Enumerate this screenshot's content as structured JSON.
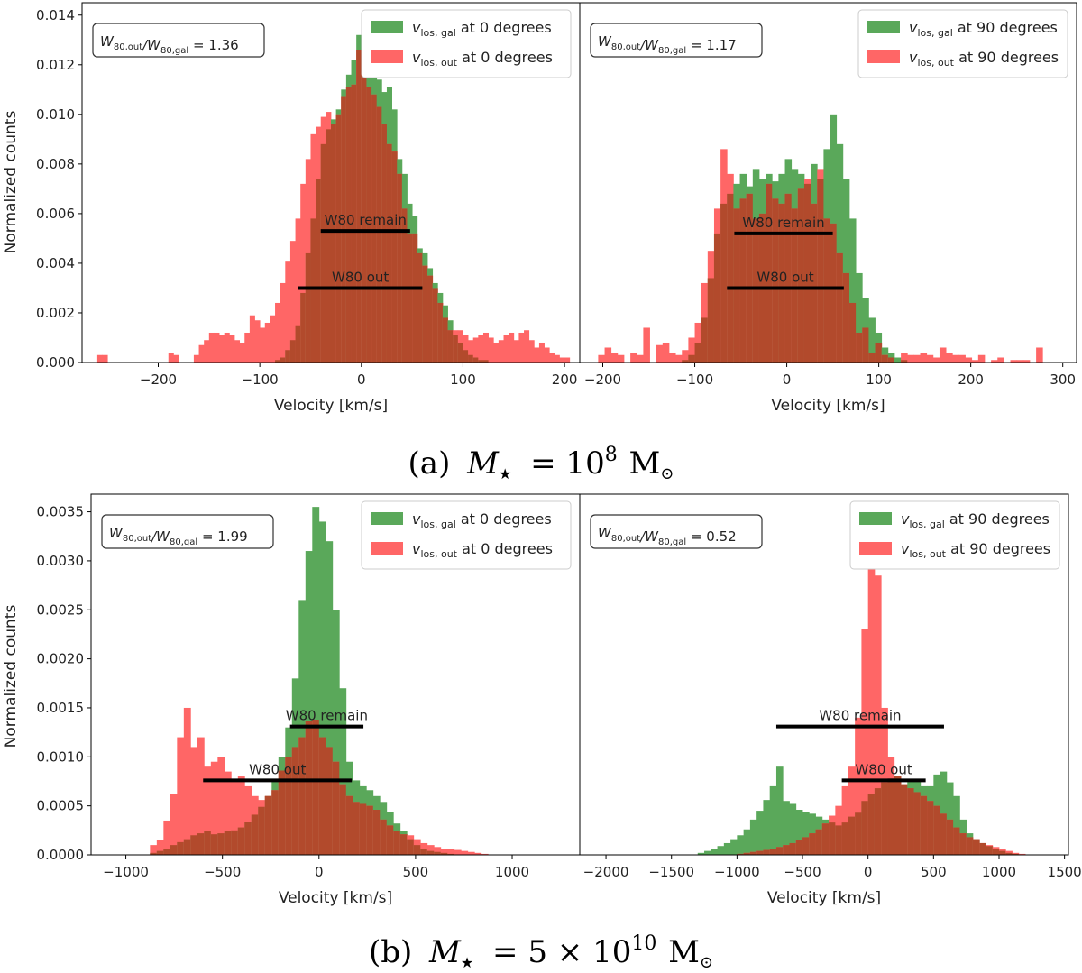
{
  "y_axis_label": "Normalized counts",
  "x_axis_label": "Velocity [km/s]",
  "captions": [
    {
      "prefix": "(a)",
      "expr": "M",
      "sub": "★",
      "eq": "= 10",
      "sup": "8",
      "unit": "M",
      "unit_sub": "⊙"
    },
    {
      "prefix": "(b)",
      "expr": "M",
      "sub": "★",
      "eq": "= 5 × 10",
      "sup": "10",
      "unit": "M",
      "unit_sub": "⊙"
    }
  ],
  "colors": {
    "gal": "#5aa85a",
    "out": "#ff6666",
    "overlap": "#b24a2c",
    "bar": "#000000"
  },
  "chart_data": [
    {
      "type": "histogram",
      "panel": "(a) left",
      "xlabel": "Velocity [km/s]",
      "ylabel": "Normalized counts",
      "xlim": [
        -275,
        215
      ],
      "ylim": [
        0,
        0.0145
      ],
      "xticks": [
        -200,
        -100,
        0,
        100,
        200
      ],
      "yticks": [
        0.0,
        0.002,
        0.004,
        0.006,
        0.008,
        0.01,
        0.012,
        0.014
      ],
      "ytick_labels": [
        "0.000",
        "0.002",
        "0.004",
        "0.006",
        "0.008",
        "0.010",
        "0.012",
        "0.014"
      ],
      "ratio_label": "W₈₀,out/W₈₀,gal = 1.36",
      "legend": [
        "v_los,gal at 0 degrees",
        "v_los,out at 0 degrees"
      ],
      "legend_position": "top-right",
      "bins": {
        "start": -260,
        "width": 5
      },
      "series": [
        {
          "name": "v_los,gal at 0 degrees",
          "values": [
            0,
            0,
            0,
            0,
            0,
            0,
            0,
            0,
            0,
            0,
            0,
            0,
            0,
            0,
            0,
            0,
            0,
            0,
            0,
            0,
            0,
            0,
            0,
            0,
            0,
            0,
            0,
            0,
            0,
            0,
            0,
            0,
            0,
            0,
            0,
            0.0001,
            0.0002,
            0.0005,
            0.0009,
            0.0015,
            0.0028,
            0.0044,
            0.0058,
            0.0074,
            0.0088,
            0.0094,
            0.0098,
            0.0102,
            0.011,
            0.0116,
            0.0122,
            0.0132,
            0.0139,
            0.0128,
            0.0122,
            0.0114,
            0.0109,
            0.0111,
            0.0102,
            0.0082,
            0.0076,
            0.0064,
            0.0059,
            0.0046,
            0.0044,
            0.0038,
            0.0032,
            0.0028,
            0.0023,
            0.0017,
            0.0011,
            0.0008,
            0.0005,
            0.0003,
            0.0002,
            0.0001,
            0.0001,
            0,
            0,
            0,
            0,
            0,
            0,
            0,
            0,
            0,
            0,
            0,
            0,
            0,
            0,
            0,
            0,
            0
          ]
        },
        {
          "name": "v_los,out at 0 degrees",
          "values": [
            0.0003,
            0.0003,
            0,
            0,
            0,
            0,
            0,
            0,
            0,
            0,
            0,
            0,
            0,
            0,
            0.0004,
            0.0003,
            0,
            0,
            0,
            0.0003,
            0.0007,
            0.0009,
            0.0012,
            0.0012,
            0.0011,
            0.0012,
            0.0011,
            0.0009,
            0.0008,
            0.0012,
            0.0019,
            0.0017,
            0.0014,
            0.0016,
            0.0019,
            0.0024,
            0.0032,
            0.0041,
            0.0049,
            0.0058,
            0.0072,
            0.0082,
            0.0092,
            0.0095,
            0.0099,
            0.0101,
            0.0096,
            0.01,
            0.0107,
            0.0111,
            0.0112,
            0.0126,
            0.0119,
            0.0111,
            0.0108,
            0.0103,
            0.0096,
            0.0088,
            0.0085,
            0.0076,
            0.0062,
            0.0052,
            0.0052,
            0.0044,
            0.0039,
            0.0035,
            0.003,
            0.0024,
            0.0018,
            0.0013,
            0.0013,
            0.0013,
            0.0011,
            0.0009,
            0.001,
            0.0011,
            0.0012,
            0.001,
            0.0008,
            0.0009,
            0.0011,
            0.0012,
            0.0009,
            0.0012,
            0.0013,
            0.0009,
            0.0006,
            0.0008,
            0.0006,
            0.0004,
            0.0003,
            0.0002,
            0.0002
          ]
        }
      ],
      "w80_bars": [
        {
          "label": "W80 remain",
          "x": [
            -40,
            48
          ],
          "y": 0.0053
        },
        {
          "label": "W80 out",
          "x": [
            -62,
            60
          ],
          "y": 0.003
        }
      ]
    },
    {
      "type": "histogram",
      "panel": "(a) right",
      "xlabel": "Velocity [km/s]",
      "ylabel": "",
      "xlim": [
        -225,
        315
      ],
      "ylim": [
        0,
        0.0145
      ],
      "xticks": [
        -200,
        -100,
        0,
        100,
        200,
        300
      ],
      "ratio_label": "W₈₀,out/W₈₀,gal = 1.17",
      "legend": [
        "v_los,gal at 90 degrees",
        "v_los,out at 90 degrees"
      ],
      "legend_position": "top-right",
      "bins": {
        "start": -205,
        "width": 7
      },
      "series": [
        {
          "name": "v_los,gal at 90 degrees",
          "values": [
            0,
            0,
            0,
            0,
            0,
            0,
            0,
            0,
            0,
            0,
            0,
            0,
            0,
            0.0001,
            0.0003,
            0.0008,
            0.0018,
            0.0034,
            0.0052,
            0.0064,
            0.0068,
            0.0072,
            0.0076,
            0.0071,
            0.0078,
            0.0074,
            0.0076,
            0.0073,
            0.0076,
            0.0082,
            0.0078,
            0.0076,
            0.0072,
            0.008,
            0.0074,
            0.0086,
            0.01,
            0.0088,
            0.0074,
            0.0058,
            0.0036,
            0.0026,
            0.0018,
            0.0012,
            0.0006,
            0.0004,
            0.0002,
            0.0001,
            0,
            0,
            0,
            0,
            0,
            0,
            0,
            0,
            0,
            0,
            0,
            0,
            0,
            0,
            0,
            0,
            0,
            0,
            0,
            0,
            0,
            0
          ]
        },
        {
          "name": "v_los,out at 90 degrees",
          "values": [
            0.0003,
            0.0006,
            0.0004,
            0.0003,
            0,
            0.0004,
            0.0003,
            0.0014,
            0,
            0.0007,
            0.0008,
            0.0004,
            0.0003,
            0.0005,
            0.001,
            0.0016,
            0.0032,
            0.0045,
            0.0062,
            0.0086,
            0.0076,
            0.0062,
            0.0066,
            0.0068,
            0.0058,
            0.006,
            0.0072,
            0.0066,
            0.0064,
            0.0068,
            0.0062,
            0.007,
            0.0074,
            0.0064,
            0.0078,
            0.0058,
            0.0056,
            0.0044,
            0.0036,
            0.0024,
            0.0012,
            0.0014,
            0.0004,
            0.0008,
            0.0003,
            0.0002,
            0,
            0.0004,
            0.0003,
            0.0003,
            0.0004,
            0.0003,
            0.0002,
            0.0006,
            0.0004,
            0.0003,
            0.0003,
            0.0002,
            0.0001,
            0.0003,
            0,
            0.0001,
            0.0002,
            0,
            0.0001,
            0.0001,
            0.0001,
            0,
            0.0006,
            0
          ]
        }
      ],
      "w80_bars": [
        {
          "label": "W80 remain",
          "x": [
            -57,
            50
          ],
          "y": 0.0052
        },
        {
          "label": "W80 out",
          "x": [
            -65,
            62
          ],
          "y": 0.003
        }
      ]
    },
    {
      "type": "histogram",
      "panel": "(b) left",
      "xlabel": "Velocity [km/s]",
      "ylabel": "Normalized counts",
      "xlim": [
        -1180,
        1350
      ],
      "ylim": [
        0,
        0.00368
      ],
      "xticks": [
        -1000,
        -500,
        0,
        500,
        1000
      ],
      "yticks": [
        0.0,
        0.0005,
        0.001,
        0.0015,
        0.002,
        0.0025,
        0.003,
        0.0035
      ],
      "ytick_labels": [
        "0.0000",
        "0.0005",
        "0.0010",
        "0.0015",
        "0.0020",
        "0.0025",
        "0.0030",
        "0.0035"
      ],
      "ratio_label": "W₈₀,out/W₈₀,gal = 1.99",
      "legend": [
        "v_los,gal at 0 degrees",
        "v_los,out at 0 degrees"
      ],
      "legend_position": "top-right",
      "bins": {
        "start": -875,
        "width": 35
      },
      "series": [
        {
          "name": "v_los,gal at 0 degrees",
          "values": [
            2e-05,
            4e-05,
            6e-05,
            0.0001,
            0.00013,
            0.00016,
            0.0002,
            0.00022,
            0.00024,
            0.00021,
            0.00022,
            0.00024,
            0.00025,
            0.00028,
            0.00034,
            0.00041,
            0.00049,
            0.0006,
            0.00077,
            0.001,
            0.0013,
            0.0018,
            0.0026,
            0.0031,
            0.00355,
            0.0034,
            0.0032,
            0.0025,
            0.0017,
            0.00095,
            0.00076,
            0.0007,
            0.00066,
            0.0006,
            0.00054,
            0.00044,
            0.00032,
            0.00024,
            0.00016,
            0.0001,
            6e-05,
            4e-05,
            3e-05,
            2e-05,
            1e-05,
            0,
            0,
            0,
            0,
            0
          ]
        },
        {
          "name": "v_los,out at 0 degrees",
          "values": [
            0.0001,
            0.00015,
            0.00035,
            0.00062,
            0.0012,
            0.0015,
            0.0011,
            0.0012,
            0.0009,
            0.00095,
            0.001,
            0.00085,
            0.00075,
            0.0008,
            0.0007,
            0.0006,
            0.00056,
            0.0006,
            0.00066,
            0.00086,
            0.001,
            0.0011,
            0.0012,
            0.00137,
            0.00138,
            0.0012,
            0.0011,
            0.00095,
            0.00072,
            0.0006,
            0.00054,
            0.00052,
            0.0005,
            0.00046,
            0.00036,
            0.0003,
            0.00024,
            0.00021,
            0.0002,
            0.00016,
            0.00012,
            0.0001,
            8e-05,
            6e-05,
            6e-05,
            5e-05,
            4e-05,
            3e-05,
            2e-05,
            1e-05
          ]
        }
      ],
      "w80_bars": [
        {
          "label": "W80 remain",
          "x": [
            -150,
            230
          ],
          "y": 0.00131
        },
        {
          "label": "W80 out",
          "x": [
            -600,
            170
          ],
          "y": 0.00076
        }
      ]
    },
    {
      "type": "histogram",
      "panel": "(b) right",
      "xlabel": "Velocity [km/s]",
      "ylabel": "",
      "xlim": [
        -2200,
        1530
      ],
      "ylim": [
        0,
        0.00368
      ],
      "xticks": [
        -2000,
        -1500,
        -1000,
        -500,
        0,
        500,
        1000,
        1500
      ],
      "ratio_label": "W₈₀,out/W₈₀,gal = 0.52",
      "legend": [
        "v_los,gal at 90 degrees",
        "v_los,out at 90 degrees"
      ],
      "legend_position": "top-right",
      "bins": {
        "start": -1300,
        "width": 50
      },
      "series": [
        {
          "name": "v_los,gal at 90 degrees",
          "values": [
            2e-05,
            4e-05,
            6e-05,
            9e-05,
            0.00012,
            0.00016,
            0.0002,
            0.00026,
            0.00036,
            0.00045,
            0.00056,
            0.0007,
            0.0009,
            0.00055,
            0.00052,
            0.00046,
            0.00044,
            0.00042,
            0.00039,
            0.00036,
            0.00033,
            0.0003,
            0.00033,
            0.00039,
            0.00043,
            0.00055,
            0.00062,
            0.00068,
            0.00074,
            0.00078,
            0.0008,
            0.00072,
            0.00075,
            0.00077,
            0.0007,
            0.0007,
            0.00082,
            0.00085,
            0.00074,
            0.0006,
            0.00036,
            0.00022,
            0.00016,
            0.00012,
            9e-05,
            6e-05,
            4e-05,
            2e-05,
            1e-05,
            0
          ]
        },
        {
          "name": "v_los,out at 90 degrees",
          "values": [
            0,
            0,
            0,
            0,
            0,
            0,
            1e-05,
            2e-05,
            3e-05,
            4e-05,
            5e-05,
            6e-05,
            8e-05,
            0.0001,
            0.00012,
            0.00015,
            0.00018,
            0.00022,
            0.00026,
            0.00032,
            0.0004,
            0.0005,
            0.0007,
            0.0009,
            0.0014,
            0.0023,
            0.00305,
            0.00285,
            0.0015,
            0.001,
            0.0008,
            0.00072,
            0.00068,
            0.00064,
            0.0006,
            0.00055,
            0.0005,
            0.00042,
            0.00036,
            0.00028,
            0.00022,
            0.00018,
            0.00016,
            0.00012,
            0.0001,
            8e-05,
            6e-05,
            4e-05,
            2e-05,
            1e-05
          ]
        }
      ],
      "w80_bars": [
        {
          "label": "W80 remain",
          "x": [
            -700,
            580
          ],
          "y": 0.00131
        },
        {
          "label": "W80 out",
          "x": [
            -200,
            440
          ],
          "y": 0.00076
        }
      ]
    }
  ]
}
